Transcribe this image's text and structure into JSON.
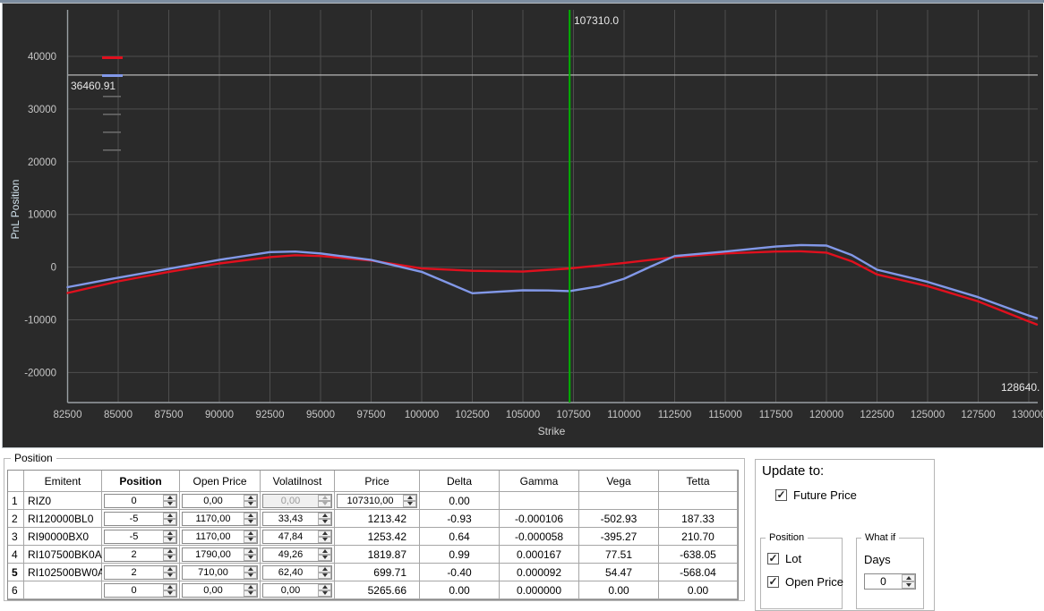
{
  "section": {
    "label": "Position"
  },
  "chart_data": {
    "type": "line",
    "title": "",
    "xlabel": "Strike",
    "ylabel": "PnL Position",
    "xlim": [
      82500,
      130400
    ],
    "ylim": [
      -25700,
      48800
    ],
    "x_ticks": [
      82500,
      85000,
      87500,
      90000,
      92500,
      95000,
      97500,
      100000,
      102500,
      105000,
      107500,
      110000,
      112500,
      115000,
      117500,
      120000,
      122500,
      125000,
      127500,
      130000
    ],
    "y_ticks": [
      40000,
      30000,
      20000,
      10000,
      0,
      -10000,
      -20000
    ],
    "grid": true,
    "legend_position": "top-left",
    "vline": {
      "x": 107310,
      "label": "107310.0",
      "color": "#00b400"
    },
    "hline": {
      "y": 36460.91,
      "label": "36460.91",
      "color": "#b8b8b8"
    },
    "cursor_label": "128640.",
    "series": [
      {
        "name": "pnl-red",
        "color": "#e0101e",
        "points": [
          [
            82500,
            -4900
          ],
          [
            85000,
            -2700
          ],
          [
            87500,
            -900
          ],
          [
            90000,
            700
          ],
          [
            92500,
            1900
          ],
          [
            93750,
            2250
          ],
          [
            95000,
            2100
          ],
          [
            97500,
            1250
          ],
          [
            100000,
            -250
          ],
          [
            102500,
            -700
          ],
          [
            105000,
            -850
          ],
          [
            107310,
            -250
          ],
          [
            110000,
            800
          ],
          [
            112500,
            1900
          ],
          [
            115000,
            2600
          ],
          [
            117500,
            2950
          ],
          [
            118750,
            3000
          ],
          [
            120000,
            2750
          ],
          [
            121250,
            1100
          ],
          [
            122500,
            -1400
          ],
          [
            125000,
            -3600
          ],
          [
            127500,
            -6500
          ],
          [
            130000,
            -10300
          ],
          [
            130400,
            -10900
          ]
        ]
      },
      {
        "name": "pnl-blue",
        "color": "#8298e8",
        "points": [
          [
            82500,
            -3800
          ],
          [
            85000,
            -2000
          ],
          [
            87500,
            -300
          ],
          [
            90000,
            1400
          ],
          [
            92500,
            2850
          ],
          [
            93750,
            2950
          ],
          [
            95000,
            2600
          ],
          [
            97500,
            1350
          ],
          [
            100000,
            -900
          ],
          [
            102500,
            -4950
          ],
          [
            105000,
            -4400
          ],
          [
            106250,
            -4430
          ],
          [
            107310,
            -4550
          ],
          [
            108750,
            -3650
          ],
          [
            110000,
            -2200
          ],
          [
            111250,
            0
          ],
          [
            112500,
            2100
          ],
          [
            115000,
            2950
          ],
          [
            117500,
            3900
          ],
          [
            118750,
            4200
          ],
          [
            120000,
            4100
          ],
          [
            121250,
            2300
          ],
          [
            122500,
            -500
          ],
          [
            125000,
            -2800
          ],
          [
            127500,
            -5700
          ],
          [
            130000,
            -9200
          ],
          [
            130400,
            -9700
          ]
        ]
      }
    ],
    "legend_extra_marks": [
      {
        "color": "#6a6a6a"
      },
      {
        "color": "#6a6a6a"
      },
      {
        "color": "#6a6a6a"
      },
      {
        "color": "#6a6a6a"
      }
    ],
    "colors": {
      "background": "#2a2a2a",
      "grid": "#4e4e4e",
      "axis": "#9aa0a4",
      "tick_text": "#c6c6c6"
    }
  },
  "table": {
    "columns": [
      "",
      "Emitent",
      "Position",
      "Open Price",
      "Volatilnost",
      "Price",
      "Delta",
      "Gamma",
      "Vega",
      "Tetta"
    ],
    "bold_column": "Position",
    "rows": [
      {
        "num": "1",
        "emitent": "RIZ0",
        "position": "0",
        "open_price": "0,00",
        "volatilnost": "0,00",
        "volatilnost_disabled": true,
        "price": "107310,00",
        "price_spinner": true,
        "delta": "0.00",
        "gamma": "",
        "vega": "",
        "tetta": "",
        "selected": false
      },
      {
        "num": "2",
        "emitent": "RI120000BL0",
        "position": "-5",
        "open_price": "1170,00",
        "volatilnost": "33,43",
        "price": "1213.42",
        "delta": "-0.93",
        "gamma": "-0.000106",
        "vega": "-502.93",
        "tetta": "187.33",
        "selected": false
      },
      {
        "num": "3",
        "emitent": "RI90000BX0",
        "position": "-5",
        "open_price": "1170,00",
        "volatilnost": "47,84",
        "price": "1253.42",
        "delta": "0.64",
        "gamma": "-0.000058",
        "vega": "-395.27",
        "tetta": "210.70",
        "selected": false
      },
      {
        "num": "4",
        "emitent": "RI107500BK0A",
        "position": "2",
        "open_price": "1790,00",
        "volatilnost": "49,26",
        "price": "1819.87",
        "delta": "0.99",
        "gamma": "0.000167",
        "vega": "77.51",
        "tetta": "-638.05",
        "selected": false
      },
      {
        "num": "5",
        "emitent": "RI102500BW0A",
        "position": "2",
        "open_price": "710,00",
        "volatilnost": "62,40",
        "price": "699.71",
        "delta": "-0.40",
        "gamma": "0.000092",
        "vega": "54.47",
        "tetta": "-568.04",
        "selected": true
      },
      {
        "num": "6",
        "emitent": "",
        "position": "0",
        "open_price": "0,00",
        "volatilnost": "0,00",
        "price": "5265.66",
        "delta": "0.00",
        "gamma": "0.000000",
        "vega": "0.00",
        "tetta": "0.00",
        "selected": false
      }
    ]
  },
  "panel": {
    "title": "Update to:",
    "future_price": {
      "label": "Future Price",
      "checked": true
    },
    "position_group": {
      "label": "Position",
      "items": [
        {
          "label": "Lot",
          "checked": true
        },
        {
          "label": "Open Price",
          "checked": true
        }
      ]
    },
    "whatif_group": {
      "label": "What if",
      "days_label": "Days",
      "days_value": "0"
    }
  }
}
